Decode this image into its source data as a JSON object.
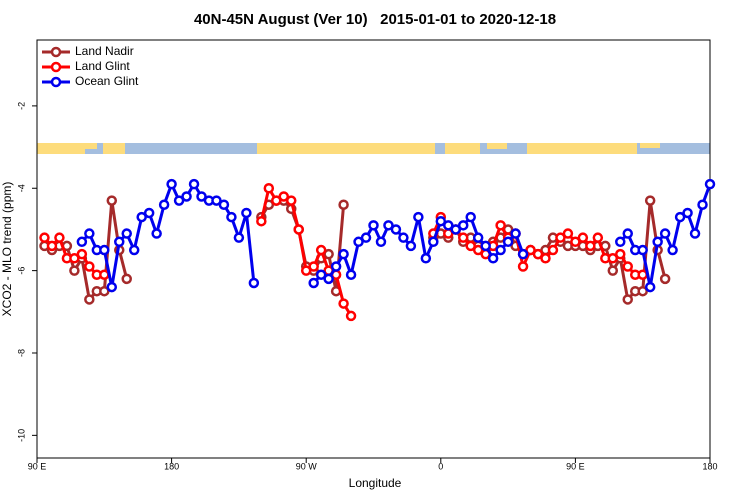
{
  "chart_data": {
    "type": "line",
    "title": "40N-45N August (Ver 10)   2015-01-01 to 2020-12-18",
    "x_label": "Longitude",
    "y_label": "XCO2 - MLO trend (ppm)",
    "x": [
      95,
      100,
      105,
      110,
      115,
      120,
      125,
      130,
      135,
      140,
      145,
      150,
      155,
      160,
      165,
      170,
      175,
      180,
      185,
      190,
      195,
      200,
      205,
      210,
      215,
      220,
      225,
      230,
      235,
      240,
      245,
      250,
      255,
      260,
      265,
      270,
      275,
      280,
      285,
      290,
      295,
      300,
      305,
      310,
      315,
      320,
      325,
      330,
      335,
      340,
      345,
      350,
      355,
      360,
      365,
      370,
      375,
      380,
      385,
      390,
      395,
      400,
      405,
      410,
      415,
      420,
      425,
      430,
      435,
      440,
      445,
      450,
      455,
      460,
      465,
      470,
      475,
      480,
      485,
      490,
      495,
      500,
      505,
      510,
      515,
      520,
      525,
      530,
      535,
      540
    ],
    "xlim": [
      90,
      540
    ],
    "xticks": [
      {
        "value": 90,
        "label": "90 E"
      },
      180,
      {
        "value": 270,
        "label": "90 W"
      },
      {
        "value": 360,
        "label": "0"
      },
      {
        "value": 450,
        "label": "90 E"
      },
      {
        "value": 540,
        "label": "180"
      }
    ],
    "ylim": [
      -10.55,
      -0.4
    ],
    "yticks": [
      -10,
      -8,
      -6,
      -4,
      -2
    ],
    "grid": false,
    "legend": "top-left",
    "series": [
      {
        "name": "Land Nadir",
        "color": "#a52a2a",
        "values": [
          -5.4,
          -5.5,
          -5.4,
          -5.4,
          -6.0,
          -5.7,
          -6.7,
          -6.5,
          -6.5,
          -4.3,
          -5.5,
          -6.2,
          null,
          null,
          null,
          null,
          null,
          null,
          null,
          null,
          null,
          null,
          null,
          null,
          null,
          null,
          null,
          null,
          null,
          -4.7,
          -4.4,
          -4.3,
          -4.3,
          -4.5,
          -5.0,
          -5.9,
          -6.0,
          -5.7,
          -5.6,
          -6.5,
          -4.4,
          null,
          null,
          null,
          null,
          null,
          null,
          null,
          null,
          null,
          null,
          null,
          -5.2,
          -5.1,
          -5.2,
          -5.0,
          -5.3,
          -5.2,
          -5.4,
          -5.5,
          -5.3,
          -5.2,
          -5.0,
          -5.4,
          -5.6,
          -5.5,
          -5.6,
          -5.5,
          -5.2,
          -5.3,
          -5.4,
          -5.4,
          -5.4,
          -5.5,
          -5.4,
          -5.4,
          -6.0,
          -5.7,
          -6.7,
          -6.5,
          -6.5,
          -4.3,
          -5.5,
          -6.2,
          null,
          null,
          null,
          null,
          null,
          null
        ]
      },
      {
        "name": "Land Glint",
        "color": "#ff0000",
        "values": [
          -5.2,
          -5.4,
          -5.2,
          -5.7,
          -5.7,
          -5.6,
          -5.9,
          -6.1,
          -6.1,
          null,
          null,
          null,
          null,
          null,
          null,
          null,
          null,
          null,
          null,
          null,
          null,
          null,
          null,
          null,
          null,
          null,
          null,
          null,
          null,
          -4.8,
          -4.0,
          -4.3,
          -4.2,
          -4.3,
          -5.0,
          -6.0,
          -5.9,
          -5.5,
          -6.0,
          -6.1,
          -6.8,
          -7.1,
          null,
          null,
          null,
          null,
          null,
          null,
          null,
          null,
          null,
          null,
          -5.1,
          -4.7,
          -5.1,
          -5.0,
          -5.2,
          -5.4,
          -5.5,
          -5.6,
          -5.4,
          -4.9,
          -5.2,
          -5.1,
          -5.9,
          -5.5,
          -5.6,
          -5.7,
          -5.5,
          -5.2,
          -5.1,
          -5.3,
          -5.2,
          -5.4,
          -5.2,
          -5.7,
          -5.7,
          -5.6,
          -5.9,
          -6.1,
          -6.1,
          null,
          null,
          null,
          null,
          null,
          null,
          null,
          null,
          null
        ]
      },
      {
        "name": "Ocean Glint",
        "color": "#0000ee",
        "values": [
          null,
          null,
          null,
          null,
          null,
          -5.3,
          -5.1,
          -5.5,
          -5.5,
          -6.4,
          -5.3,
          -5.1,
          -5.5,
          -4.7,
          -4.6,
          -5.1,
          -4.4,
          -3.9,
          -4.3,
          -4.2,
          -3.9,
          -4.2,
          -4.3,
          -4.3,
          -4.4,
          -4.7,
          -5.2,
          -4.6,
          -6.3,
          null,
          null,
          null,
          null,
          null,
          null,
          null,
          -6.3,
          -6.1,
          -6.2,
          -5.9,
          -5.6,
          -6.1,
          -5.3,
          -5.2,
          -4.9,
          -5.3,
          -4.9,
          -5.0,
          -5.2,
          -5.4,
          -4.7,
          -5.7,
          -5.3,
          -4.8,
          -4.9,
          -5.0,
          -4.9,
          -4.7,
          -5.2,
          -5.4,
          -5.7,
          -5.5,
          -5.3,
          -5.1,
          -5.6,
          null,
          null,
          null,
          null,
          null,
          null,
          null,
          null,
          null,
          null,
          null,
          null,
          -5.3,
          -5.1,
          -5.5,
          -5.5,
          -6.4,
          -5.3,
          -5.1,
          -5.5,
          -4.7,
          -4.6,
          -5.1,
          -4.4,
          -3.9
        ]
      }
    ]
  }
}
